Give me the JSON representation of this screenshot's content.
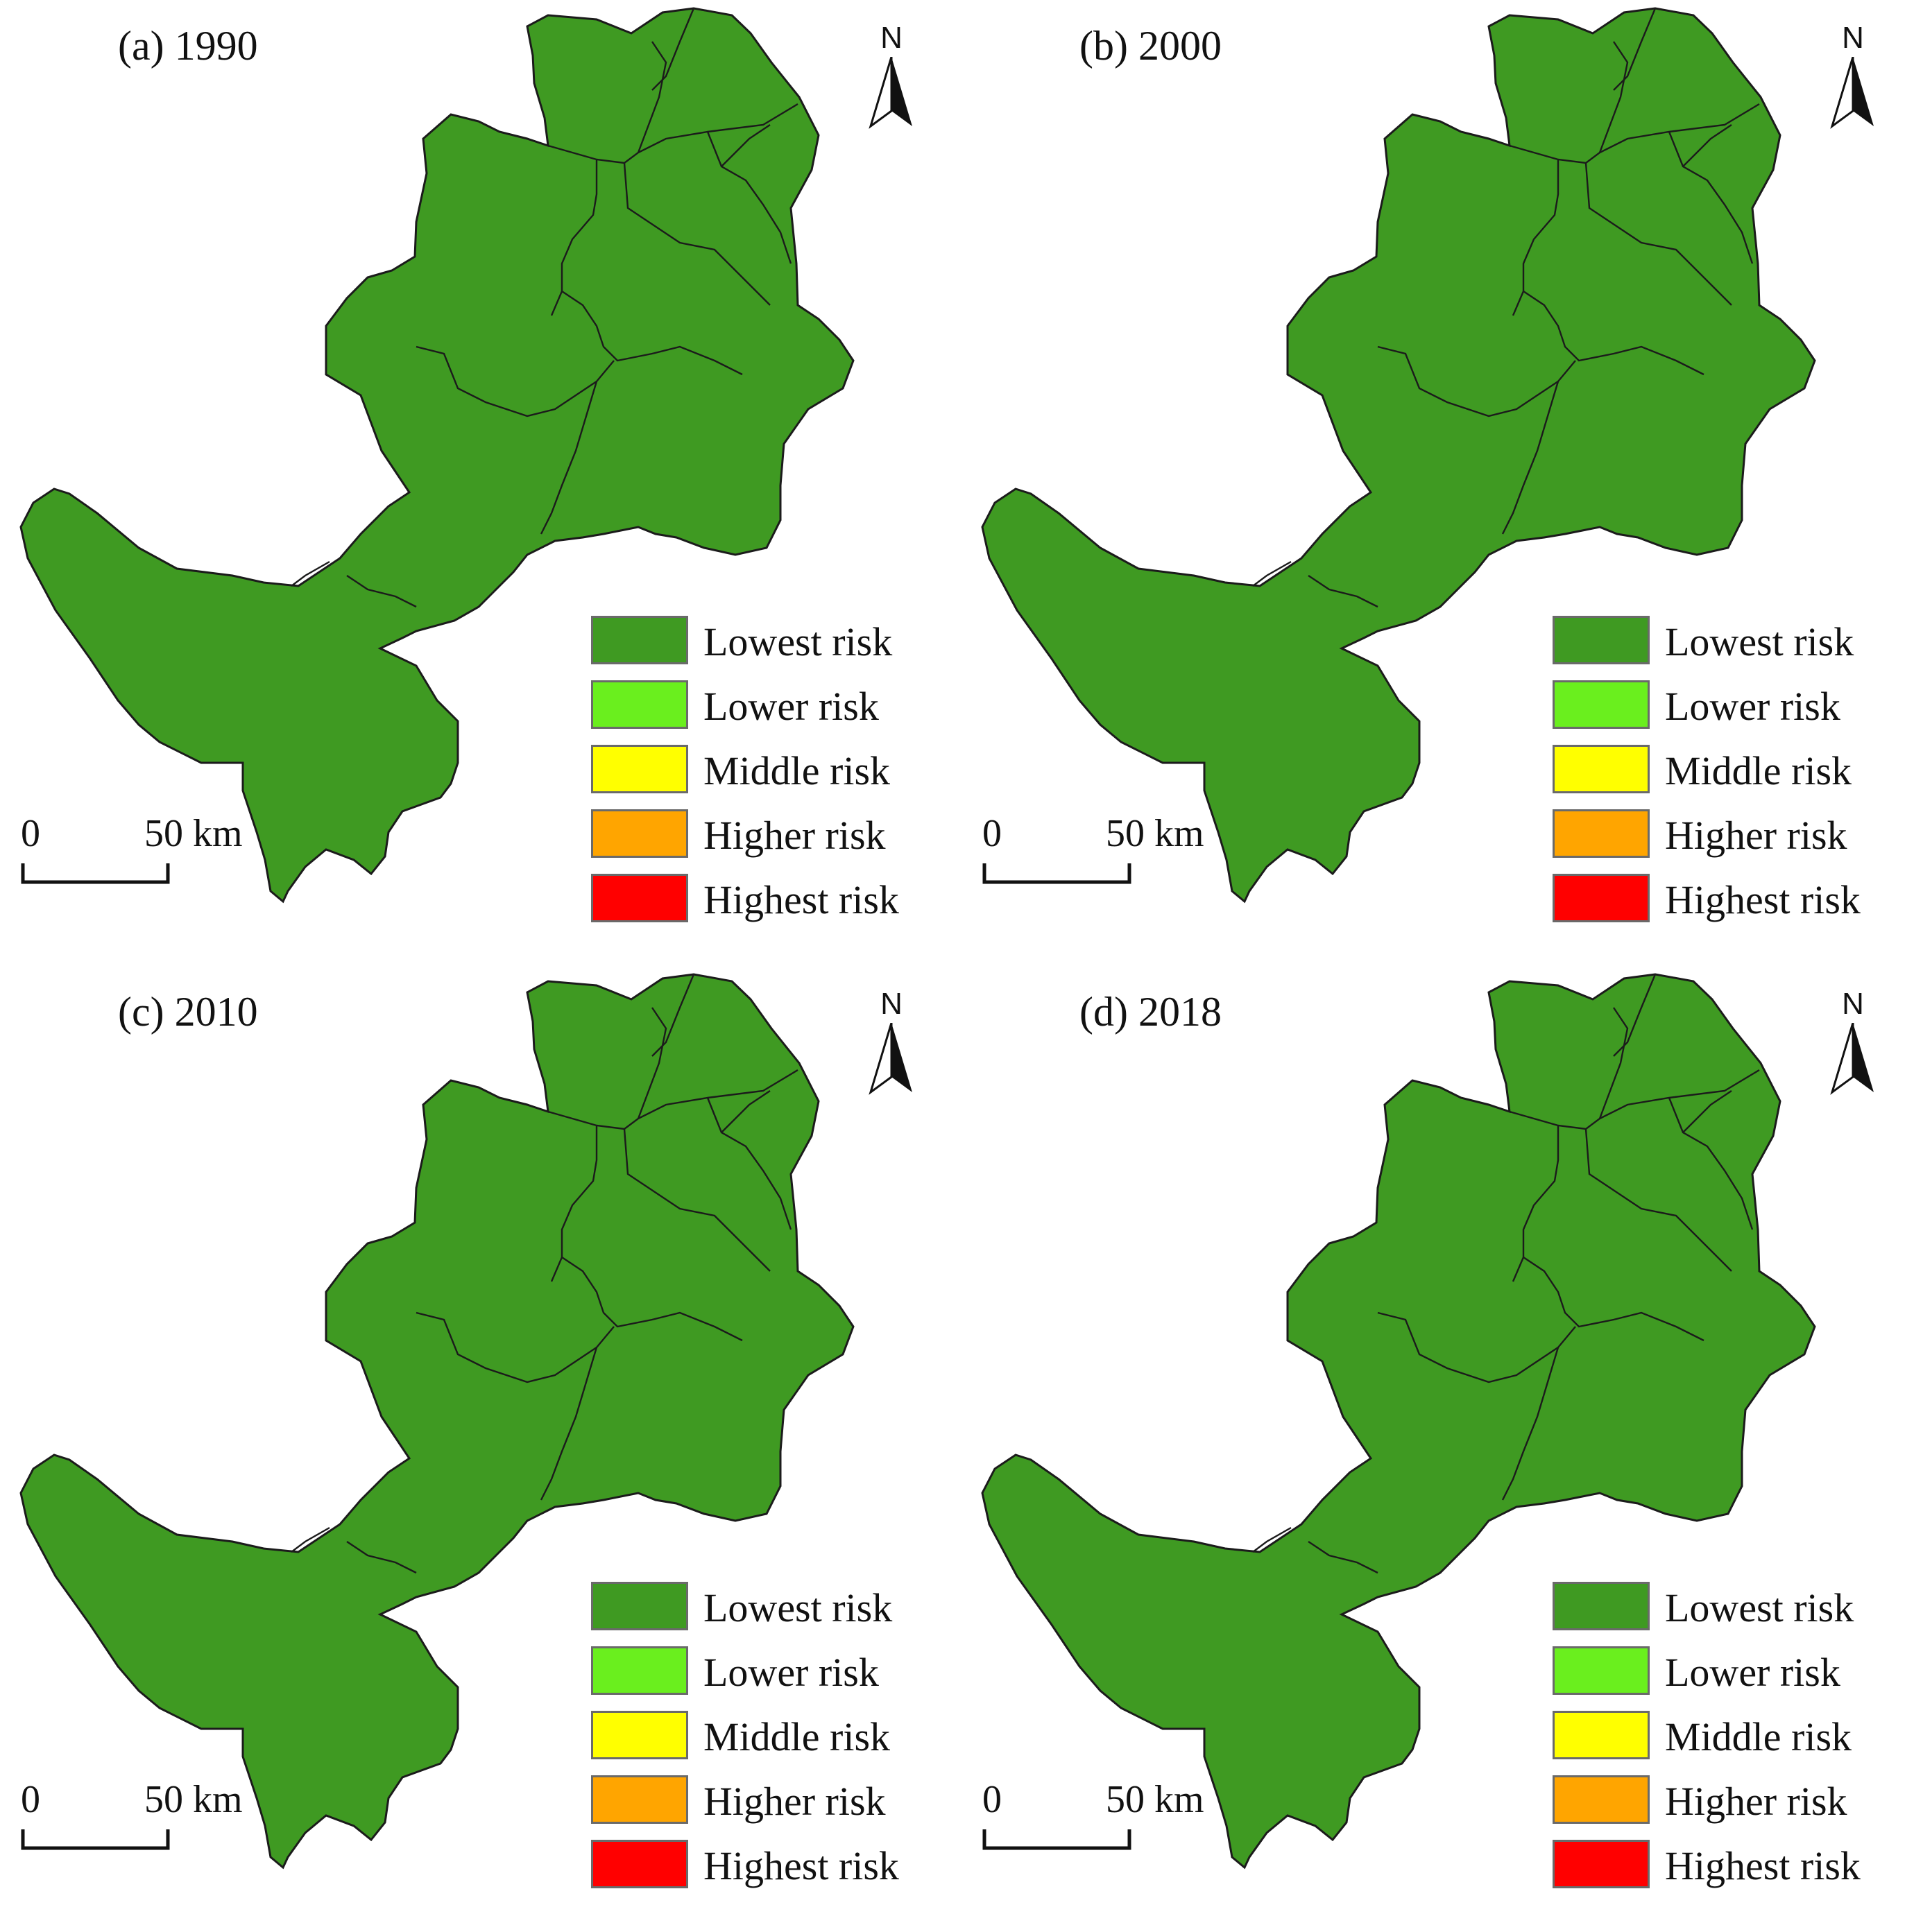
{
  "figure": {
    "panels": [
      {
        "id": "a",
        "title": "(a) 1990"
      },
      {
        "id": "b",
        "title": "(b) 2000"
      },
      {
        "id": "c",
        "title": "(c) 2010"
      },
      {
        "id": "d",
        "title": "(d) 2018"
      }
    ],
    "north_label": "N",
    "scale": {
      "zero": "0",
      "distance": "50 km"
    },
    "legend": [
      {
        "label": "Lowest risk",
        "color": "#3f9a22"
      },
      {
        "label": "Lower risk",
        "color": "#6aef1e"
      },
      {
        "label": "Middle risk",
        "color": "#ffff00"
      },
      {
        "label": "Higher risk",
        "color": "#ffa500"
      },
      {
        "label": "Highest risk",
        "color": "#ff0000"
      }
    ]
  }
}
